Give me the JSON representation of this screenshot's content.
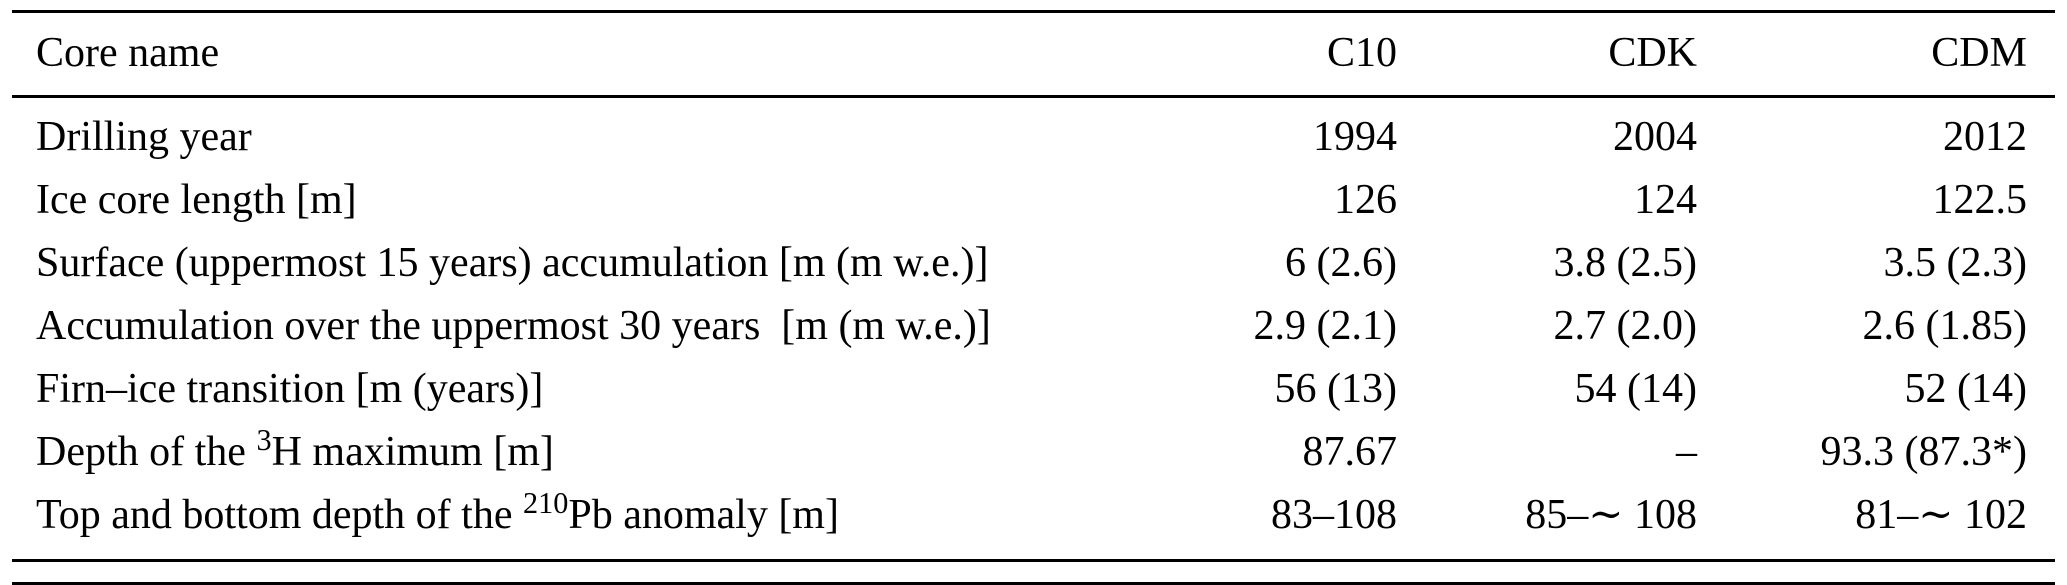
{
  "table": {
    "header": {
      "label": "Core name",
      "columns": [
        "C10",
        "CDK",
        "CDM"
      ]
    },
    "rows": [
      {
        "label": [
          {
            "t": "Drilling year"
          }
        ],
        "values": [
          "1994",
          "2004",
          "2012"
        ]
      },
      {
        "label": [
          {
            "t": "Ice core length [m]"
          }
        ],
        "values": [
          "126",
          "124",
          "122.5"
        ]
      },
      {
        "label": [
          {
            "t": "Surface (uppermost 15 years) accumulation [m (m w.e.)]"
          }
        ],
        "values": [
          "6 (2.6)",
          "3.8 (2.5)",
          "3.5 (2.3)"
        ]
      },
      {
        "label": [
          {
            "t": "Accumulation over the uppermost 30 years  [m (m w.e.)]"
          }
        ],
        "values": [
          "2.9 (2.1)",
          "2.7 (2.0)",
          "2.6 (1.85)"
        ]
      },
      {
        "label": [
          {
            "t": "Firn–ice transition [m (years)]"
          }
        ],
        "values": [
          "56 (13)",
          "54 (14)",
          "52 (14)"
        ]
      },
      {
        "label": [
          {
            "t": "Depth of the "
          },
          {
            "sup": "3"
          },
          {
            "t": "H maximum [m]"
          }
        ],
        "values": [
          "87.67",
          "–",
          "93.3 (87.3*)"
        ]
      },
      {
        "label": [
          {
            "t": "Top and bottom depth of the "
          },
          {
            "sup": "210"
          },
          {
            "t": "Pb anomaly [m]"
          }
        ],
        "values": [
          "83–108",
          "85–∼ 108",
          "81–∼ 102"
        ]
      }
    ]
  }
}
